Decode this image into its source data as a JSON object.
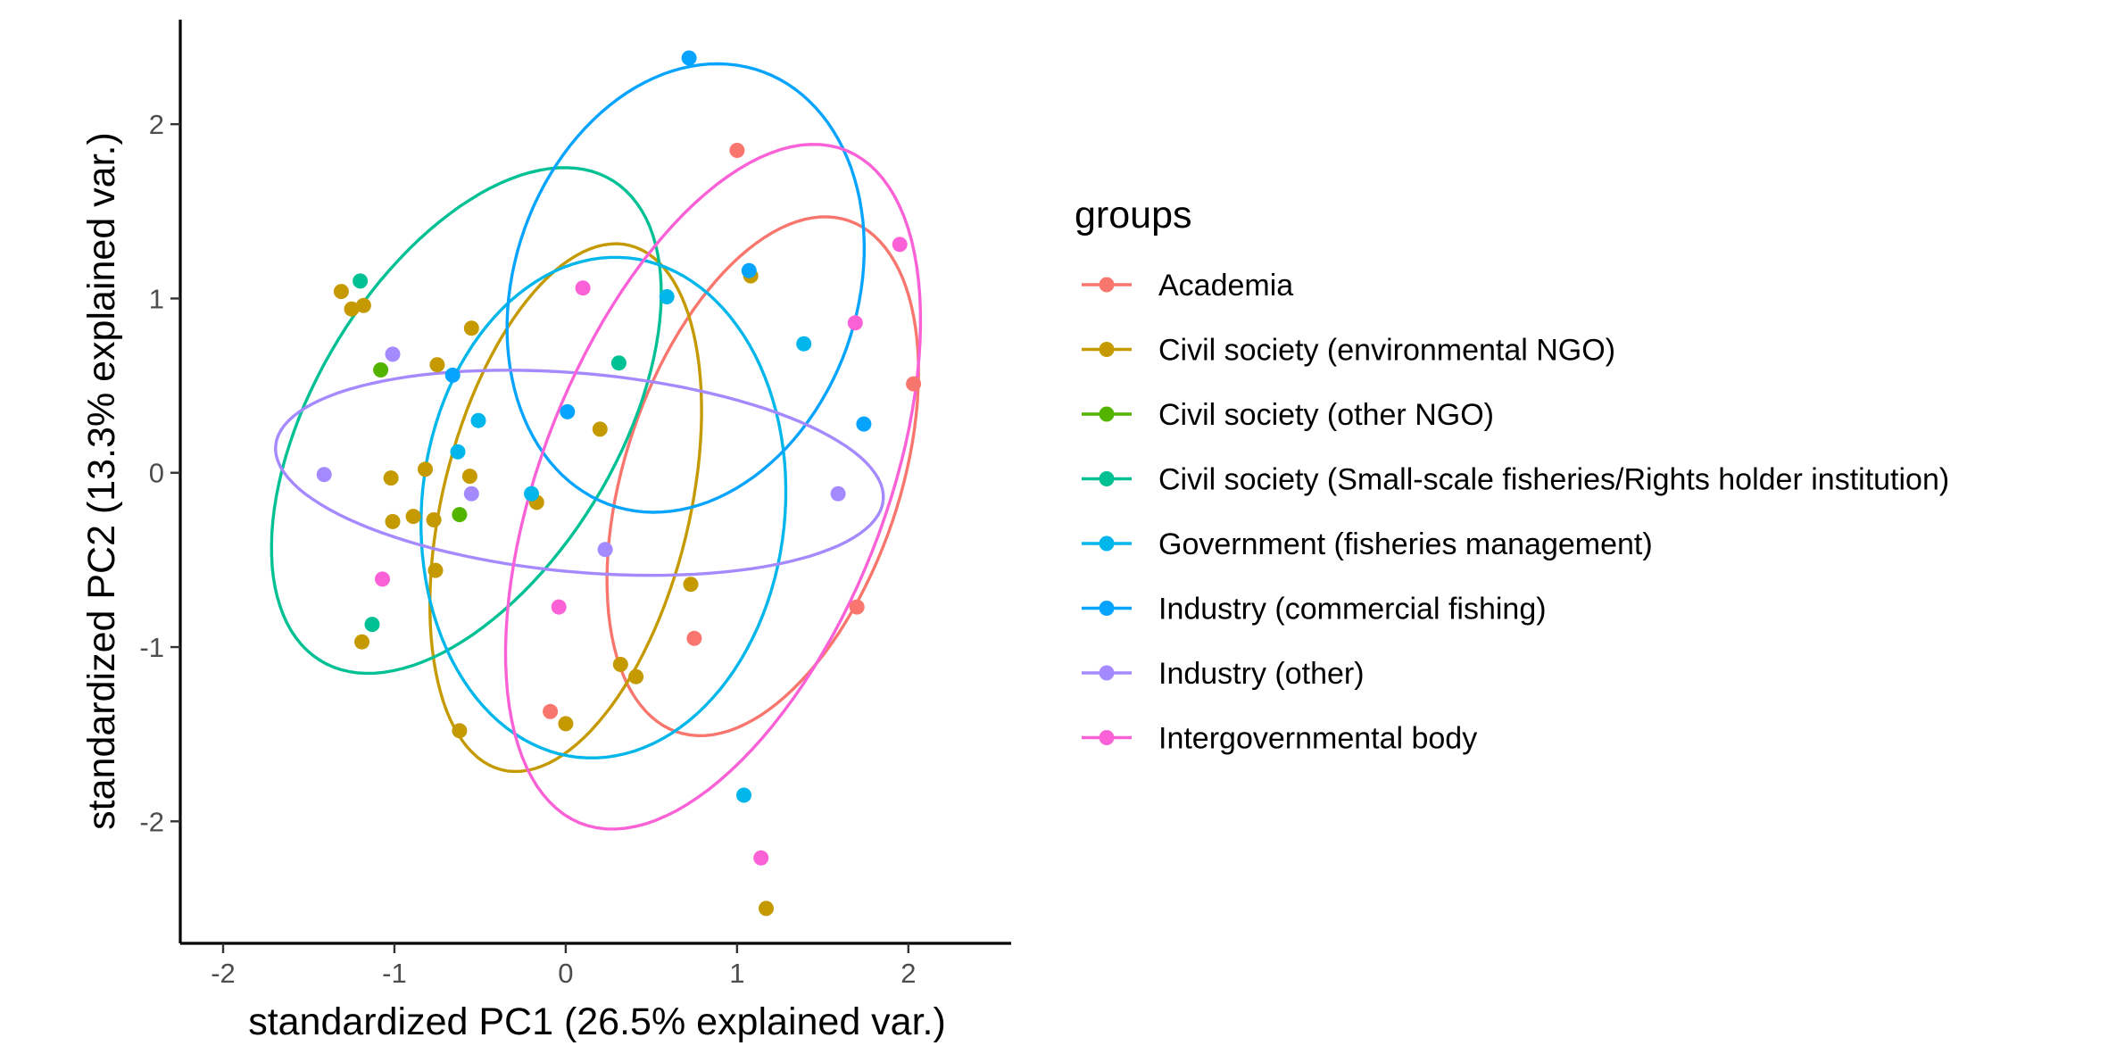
{
  "chart_data": {
    "type": "scatter",
    "xlabel": "standardized PC1 (26.5% explained var.)",
    "ylabel": "standardized PC2 (13.3% explained var.)",
    "xlim": [
      -2.25,
      2.6
    ],
    "ylim": [
      -2.7,
      2.6
    ],
    "x_ticks": [
      {
        "value": -2,
        "label": "-2"
      },
      {
        "value": -1,
        "label": "-1"
      },
      {
        "value": 0,
        "label": "0"
      },
      {
        "value": 1,
        "label": "1"
      },
      {
        "value": 2,
        "label": "2"
      }
    ],
    "y_ticks": [
      {
        "value": -2,
        "label": "-2"
      },
      {
        "value": -1,
        "label": "-1"
      },
      {
        "value": 0,
        "label": "0"
      },
      {
        "value": 1,
        "label": "1"
      },
      {
        "value": 2,
        "label": "2"
      }
    ],
    "grid": false,
    "legend": {
      "title": "groups",
      "position": "right"
    },
    "series": [
      {
        "name": "Academia",
        "color": "#F8766D",
        "points": [
          [
            1.0,
            1.85
          ],
          [
            2.03,
            0.51
          ],
          [
            1.7,
            -0.77
          ],
          [
            0.75,
            -0.95
          ],
          [
            -0.09,
            -1.37
          ]
        ],
        "ellipse": {
          "cx": 1.15,
          "cy": -0.02,
          "rx": 1.55,
          "ry": 0.8,
          "angle_deg": 71
        }
      },
      {
        "name": "Civil society (environmental NGO)",
        "color": "#C49A00",
        "points": [
          [
            -1.31,
            1.04
          ],
          [
            -1.25,
            0.94
          ],
          [
            -1.18,
            0.96
          ],
          [
            -0.55,
            0.83
          ],
          [
            -0.75,
            0.62
          ],
          [
            0.2,
            0.25
          ],
          [
            1.08,
            1.13
          ],
          [
            -1.02,
            -0.03
          ],
          [
            -0.82,
            0.02
          ],
          [
            -0.56,
            -0.02
          ],
          [
            -0.89,
            -0.25
          ],
          [
            -0.77,
            -0.27
          ],
          [
            -1.01,
            -0.28
          ],
          [
            -0.17,
            -0.17
          ],
          [
            -0.76,
            -0.56
          ],
          [
            0.73,
            -0.64
          ],
          [
            -1.19,
            -0.97
          ],
          [
            0.32,
            -1.1
          ],
          [
            0.41,
            -1.17
          ],
          [
            -0.62,
            -1.48
          ],
          [
            0.0,
            -1.44
          ],
          [
            1.17,
            -2.5
          ]
        ],
        "ellipse": {
          "cx": 0.0,
          "cy": -0.2,
          "rx": 1.55,
          "ry": 0.72,
          "angle_deg": 76
        }
      },
      {
        "name": "Civil society (other NGO)",
        "color": "#53B400",
        "points": [
          [
            -1.08,
            0.59
          ],
          [
            -0.62,
            -0.24
          ]
        ],
        "ellipse": null
      },
      {
        "name": "Civil society (Small-scale fisheries/Rights holder institution)",
        "color": "#00C094",
        "points": [
          [
            -1.2,
            1.1
          ],
          [
            0.31,
            0.63
          ],
          [
            -1.13,
            -0.87
          ]
        ],
        "ellipse": {
          "cx": -0.58,
          "cy": 0.3,
          "rx": 1.62,
          "ry": 0.88,
          "angle_deg": 58
        }
      },
      {
        "name": "Government (fisheries management)",
        "color": "#00B6EB",
        "points": [
          [
            0.59,
            1.01
          ],
          [
            1.39,
            0.74
          ],
          [
            -0.51,
            0.3
          ],
          [
            -0.63,
            0.12
          ],
          [
            -0.2,
            -0.12
          ],
          [
            1.04,
            -1.85
          ]
        ],
        "ellipse": {
          "cx": 0.22,
          "cy": -0.2,
          "rx": 1.44,
          "ry": 1.06,
          "angle_deg": 84
        }
      },
      {
        "name": "Industry (commercial fishing)",
        "color": "#06A4FF",
        "points": [
          [
            0.72,
            2.38
          ],
          [
            1.07,
            1.16
          ],
          [
            -0.66,
            0.56
          ],
          [
            0.01,
            0.35
          ],
          [
            1.74,
            0.28
          ]
        ],
        "ellipse": {
          "cx": 0.7,
          "cy": 1.06,
          "rx": 1.32,
          "ry": 1.0,
          "angle_deg": 70
        }
      },
      {
        "name": "Industry (other)",
        "color": "#A58AFF",
        "points": [
          [
            -1.01,
            0.68
          ],
          [
            -1.41,
            -0.01
          ],
          [
            -0.55,
            -0.12
          ],
          [
            1.59,
            -0.12
          ],
          [
            0.23,
            -0.44
          ]
        ],
        "ellipse": {
          "cx": 0.08,
          "cy": 0.0,
          "rx": 1.78,
          "ry": 0.57,
          "angle_deg": -5
        }
      },
      {
        "name": "Intergovernmental body",
        "color": "#FB61D7",
        "points": [
          [
            0.1,
            1.06
          ],
          [
            1.95,
            1.31
          ],
          [
            1.69,
            0.86
          ],
          [
            -1.07,
            -0.61
          ],
          [
            -0.04,
            -0.77
          ],
          [
            1.14,
            -2.21
          ]
        ],
        "ellipse": {
          "cx": 0.86,
          "cy": -0.08,
          "rx": 2.08,
          "ry": 1.0,
          "angle_deg": 68
        }
      }
    ]
  }
}
